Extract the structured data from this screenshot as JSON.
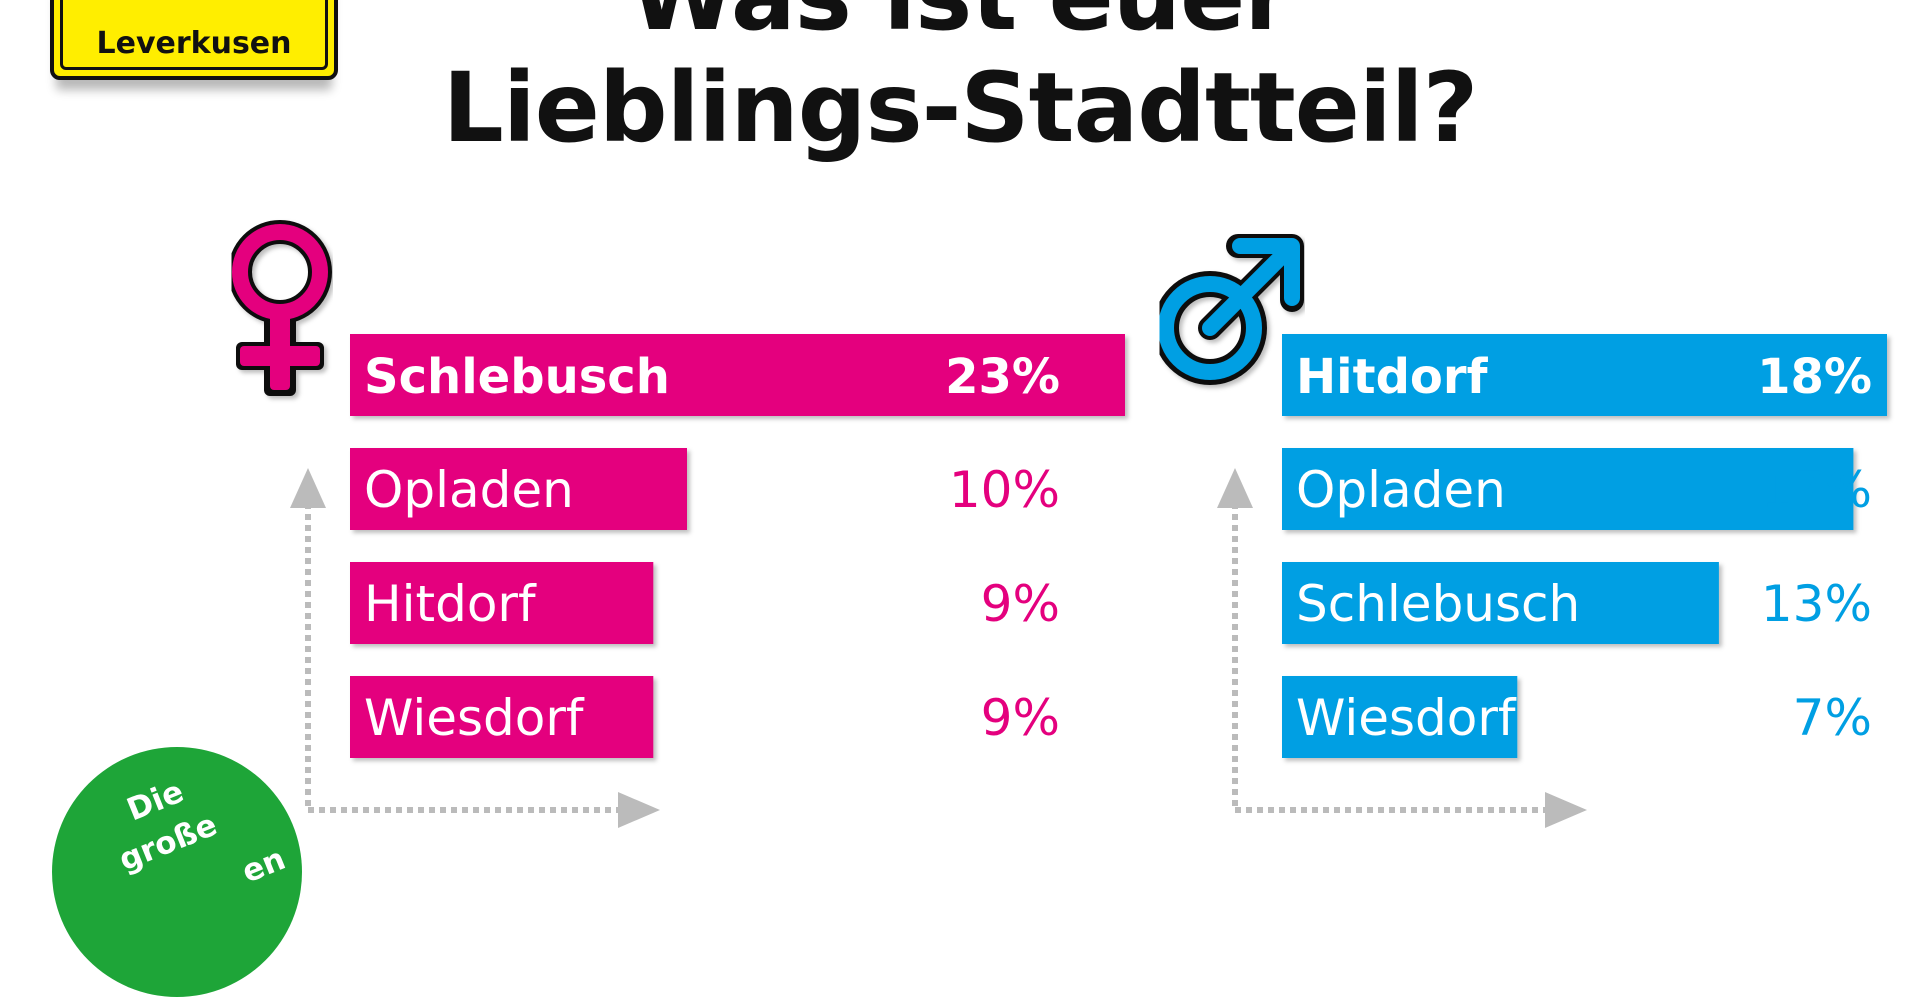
{
  "header": {
    "title_line1": "Was ist euer",
    "title_line2": "Lieblings-Stadtteil?"
  },
  "sign": {
    "text": "Leverkusen"
  },
  "badge": {
    "line1": "Die",
    "line2": "große",
    "line3": "en"
  },
  "colors": {
    "female": "#e4007e",
    "male": "#009fe3",
    "badge": "#1ea538",
    "arrow": "#bbbbbb"
  },
  "chart_data": [
    {
      "type": "bar",
      "orientation": "horizontal",
      "group": "female",
      "icon": "female-symbol-icon",
      "categories": [
        "Schlebusch",
        "Opladen",
        "Hitdorf",
        "Wiesdorf"
      ],
      "values": [
        23,
        10,
        9,
        9
      ],
      "value_labels": [
        "23%",
        "10%",
        "9%",
        "9%"
      ],
      "unit": "%",
      "xlim": [
        0,
        23
      ],
      "grid": false,
      "legend": "none"
    },
    {
      "type": "bar",
      "orientation": "horizontal",
      "group": "male",
      "icon": "male-symbol-icon",
      "categories": [
        "Hitdorf",
        "Opladen",
        "Schlebusch",
        "Wiesdorf"
      ],
      "values": [
        18,
        17,
        13,
        7
      ],
      "value_labels": [
        "18%",
        "17%",
        "13%",
        "7%"
      ],
      "unit": "%",
      "xlim": [
        0,
        18
      ],
      "grid": false,
      "legend": "none"
    }
  ]
}
